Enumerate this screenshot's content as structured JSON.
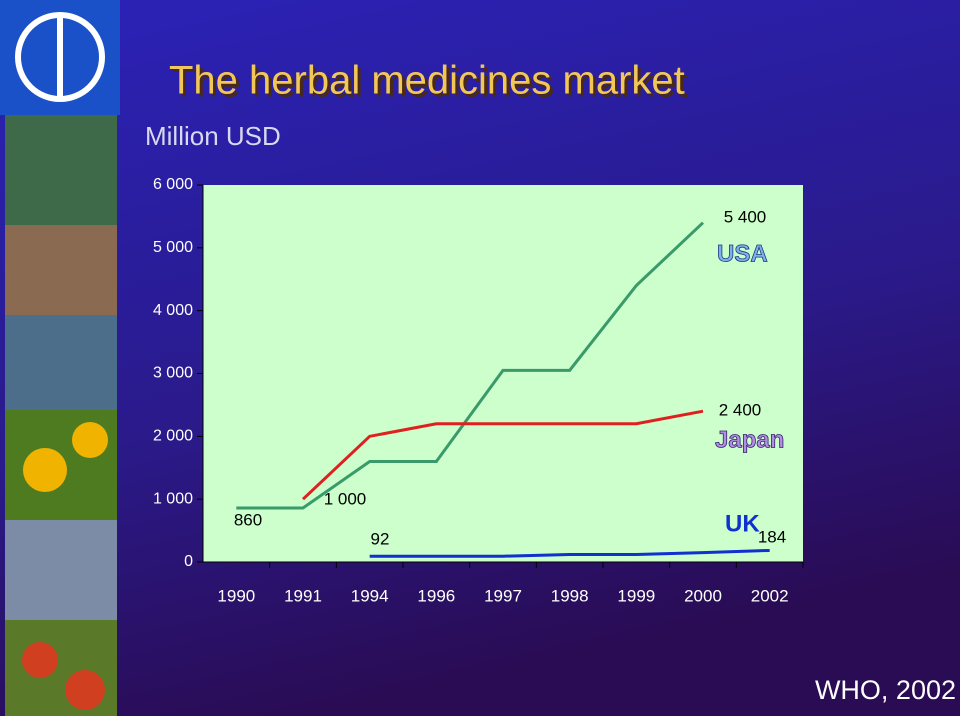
{
  "chart_data": {
    "type": "line",
    "title": "The herbal medicines market",
    "subtitle": "Million USD",
    "source": "WHO, 2002",
    "categories": [
      "1990",
      "1991",
      "1994",
      "1996",
      "1997",
      "1998",
      "1999",
      "2000",
      "2002"
    ],
    "ylim": [
      0,
      6000
    ],
    "yticks": [
      0,
      {
        "value": 1000,
        "label": "1 000"
      },
      {
        "value": 2000,
        "label": "2 000"
      },
      {
        "value": 3000,
        "label": "3 000"
      },
      {
        "value": 4000,
        "label": "4 000"
      },
      {
        "value": 5000,
        "label": "5 000"
      },
      {
        "value": 6000,
        "label": "6 000"
      }
    ],
    "grid": false,
    "plot_background": "#ccffcc",
    "series": [
      {
        "name": "USA",
        "color": "#3a9a6a",
        "values": [
          860,
          860,
          1600,
          1600,
          3050,
          3050,
          4400,
          5400,
          null
        ],
        "value_labels": [
          "860",
          null,
          null,
          null,
          null,
          null,
          null,
          "5 400",
          null
        ]
      },
      {
        "name": "Japan",
        "color": "#e02020",
        "values": [
          null,
          1000,
          2000,
          2200,
          2200,
          2200,
          2200,
          2400,
          null
        ],
        "value_labels": [
          null,
          "1 000",
          null,
          null,
          null,
          null,
          null,
          "2 400",
          null
        ]
      },
      {
        "name": "UK",
        "color": "#1030d0",
        "values": [
          null,
          null,
          92,
          92,
          92,
          120,
          120,
          150,
          184
        ],
        "value_labels": [
          null,
          null,
          "92",
          null,
          null,
          null,
          null,
          null,
          "184"
        ]
      }
    ]
  }
}
